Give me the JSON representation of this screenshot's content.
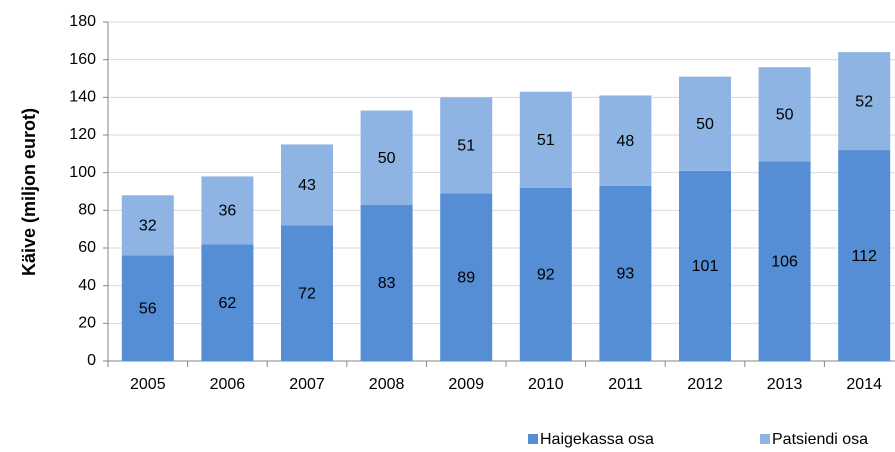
{
  "chart_data": {
    "type": "stacked_bar",
    "y_label": "Käive (miljon eurot)",
    "categories": [
      "2005",
      "2006",
      "2007",
      "2008",
      "2009",
      "2010",
      "2011",
      "2012",
      "2013",
      "2014"
    ],
    "series": [
      {
        "name": "Haigekassa osa",
        "color": "#558ed5",
        "values": [
          56,
          62,
          72,
          83,
          89,
          92,
          93,
          101,
          106,
          112
        ]
      },
      {
        "name": "Patsiendi osa",
        "color": "#8eb4e3",
        "values": [
          32,
          36,
          43,
          50,
          51,
          51,
          48,
          50,
          50,
          52
        ]
      }
    ],
    "ylim": [
      0,
      180
    ],
    "yticks": [
      0,
      20,
      40,
      60,
      80,
      100,
      120,
      140,
      160,
      180
    ],
    "grid": true,
    "legend": "bottom"
  }
}
